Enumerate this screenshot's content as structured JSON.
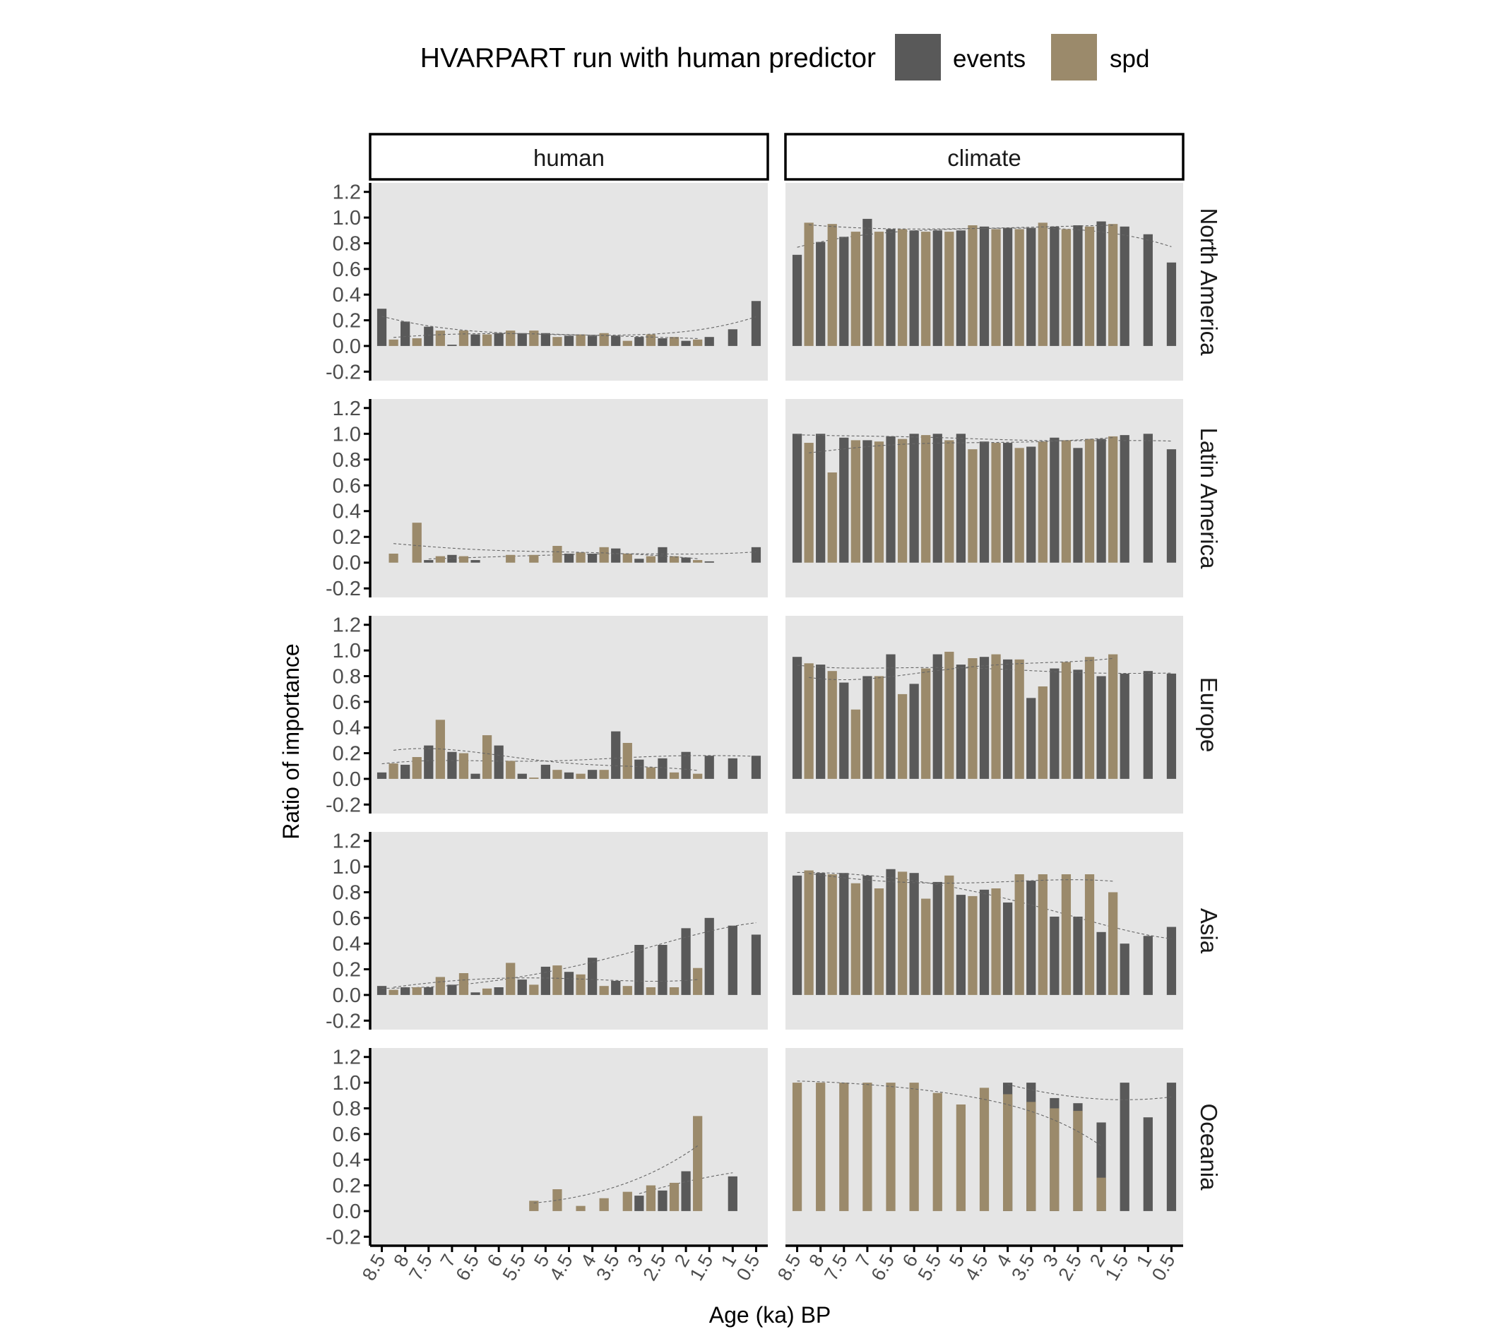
{
  "legend": {
    "title": "HVARPART run with human predictor",
    "items": [
      {
        "label": "events",
        "color": "#595959"
      },
      {
        "label": "spd",
        "color": "#9B8A6B"
      }
    ]
  },
  "axes": {
    "ylabel": "Ratio of importance",
    "xlabel": "Age (ka) BP"
  },
  "chart_data": {
    "type": "bar",
    "title": "",
    "xlabel": "Age (ka) BP",
    "ylabel": "Ratio of importance",
    "ylim": [
      -0.27,
      1.27
    ],
    "xlim": [
      8.75,
      0.25
    ],
    "x_reversed": true,
    "yticks": [
      -0.2,
      0.0,
      0.2,
      0.4,
      0.6,
      0.8,
      1.0,
      1.2
    ],
    "ytick_labels": [
      "-0.2",
      "0.0",
      "0.2",
      "0.4",
      "0.6",
      "0.8",
      "1.0",
      "1.2"
    ],
    "xticks": [
      8.5,
      8,
      7.5,
      7,
      6.5,
      6,
      5.5,
      5,
      4.5,
      4,
      3.5,
      3,
      2.5,
      2,
      1.5,
      1,
      0.5
    ],
    "xtick_labels": [
      "8.5",
      "8",
      "7.5",
      "7",
      "6.5",
      "6",
      "5.5",
      "5",
      "4.5",
      "4",
      "3.5",
      "3",
      "2.5",
      "2",
      "1.5",
      "1",
      "0.5"
    ],
    "grid": false,
    "legend_position": "top",
    "facet_columns": [
      "human",
      "climate"
    ],
    "facet_rows": [
      "North America",
      "Latin America",
      "Europe",
      "Asia",
      "Oceania"
    ],
    "series_names": [
      "events",
      "spd"
    ],
    "ages": [
      8.5,
      8.25,
      8,
      7.75,
      7.5,
      7.25,
      7,
      6.75,
      6.5,
      6.25,
      6,
      5.75,
      5.5,
      5.25,
      5,
      4.75,
      4.5,
      4.25,
      4,
      3.75,
      3.5,
      3.25,
      3,
      2.75,
      2.5,
      2.25,
      2,
      1.75,
      1.5,
      1.25,
      1,
      0.75,
      0.5
    ],
    "panels": [
      {
        "row": "North America",
        "col": "human",
        "events": [
          0.29,
          null,
          0.19,
          null,
          0.15,
          null,
          0.01,
          null,
          0.09,
          null,
          0.1,
          null,
          0.1,
          null,
          0.1,
          null,
          0.08,
          null,
          0.08,
          null,
          0.08,
          null,
          0.07,
          null,
          0.06,
          null,
          0.04,
          null,
          0.07,
          null,
          0.13,
          null,
          0.35
        ],
        "spd": [
          null,
          0.05,
          null,
          0.06,
          null,
          0.12,
          null,
          0.12,
          null,
          0.09,
          null,
          0.12,
          null,
          0.12,
          null,
          0.07,
          null,
          0.09,
          null,
          0.1,
          null,
          0.04,
          null,
          0.09,
          null,
          0.07,
          null,
          0.05,
          null,
          null,
          null,
          null,
          null
        ]
      },
      {
        "row": "North America",
        "col": "climate",
        "events": [
          0.71,
          null,
          0.81,
          null,
          0.85,
          null,
          0.99,
          null,
          0.91,
          null,
          0.9,
          null,
          0.9,
          null,
          0.9,
          null,
          0.93,
          null,
          0.92,
          null,
          0.92,
          null,
          0.93,
          null,
          0.94,
          null,
          0.97,
          null,
          0.93,
          null,
          0.87,
          null,
          0.65
        ],
        "spd": [
          null,
          0.96,
          null,
          0.95,
          null,
          0.89,
          null,
          0.89,
          null,
          0.91,
          null,
          0.89,
          null,
          0.89,
          null,
          0.94,
          null,
          0.91,
          null,
          0.91,
          null,
          0.96,
          null,
          0.91,
          null,
          0.93,
          null,
          0.95,
          null,
          null,
          null,
          null,
          null
        ]
      },
      {
        "row": "Latin America",
        "col": "human",
        "events": [
          null,
          null,
          null,
          null,
          0.02,
          null,
          0.06,
          null,
          0.02,
          null,
          null,
          null,
          null,
          null,
          null,
          null,
          0.07,
          null,
          0.07,
          null,
          0.11,
          null,
          0.03,
          null,
          0.12,
          null,
          0.04,
          null,
          0.01,
          null,
          null,
          null,
          0.12
        ],
        "spd": [
          null,
          0.07,
          null,
          0.31,
          null,
          0.05,
          null,
          0.05,
          null,
          null,
          null,
          0.06,
          null,
          0.06,
          null,
          0.13,
          null,
          0.08,
          null,
          0.12,
          null,
          0.07,
          null,
          0.05,
          null,
          0.05,
          null,
          0.02,
          null,
          null,
          null,
          null,
          null
        ]
      },
      {
        "row": "Latin America",
        "col": "climate",
        "events": [
          1.0,
          null,
          1.0,
          null,
          0.97,
          null,
          0.95,
          null,
          0.98,
          null,
          1.0,
          null,
          1.0,
          null,
          1.0,
          null,
          0.94,
          null,
          0.93,
          null,
          0.9,
          null,
          0.97,
          null,
          0.89,
          null,
          0.96,
          null,
          0.99,
          null,
          1.0,
          null,
          0.88
        ],
        "spd": [
          null,
          0.93,
          null,
          0.7,
          null,
          0.95,
          null,
          0.94,
          null,
          0.96,
          null,
          0.99,
          null,
          0.95,
          null,
          0.88,
          null,
          0.93,
          null,
          0.89,
          null,
          0.94,
          null,
          0.95,
          null,
          0.96,
          null,
          0.98,
          null,
          null,
          null,
          null,
          null
        ]
      },
      {
        "row": "Europe",
        "col": "human",
        "events": [
          0.05,
          null,
          0.11,
          null,
          0.26,
          null,
          0.21,
          null,
          0.04,
          null,
          0.26,
          null,
          0.04,
          null,
          0.11,
          null,
          0.05,
          null,
          0.07,
          null,
          0.37,
          null,
          0.15,
          null,
          0.16,
          null,
          0.21,
          null,
          0.18,
          null,
          0.16,
          null,
          0.18
        ],
        "spd": [
          null,
          0.12,
          null,
          0.17,
          null,
          0.46,
          null,
          0.2,
          null,
          0.34,
          null,
          0.14,
          null,
          0.01,
          null,
          0.07,
          null,
          0.04,
          null,
          0.07,
          null,
          0.28,
          null,
          0.09,
          null,
          0.05,
          null,
          0.04,
          null,
          null,
          null,
          null,
          null
        ]
      },
      {
        "row": "Europe",
        "col": "climate",
        "events": [
          0.95,
          null,
          0.89,
          null,
          0.75,
          null,
          0.8,
          null,
          0.97,
          null,
          0.74,
          null,
          0.97,
          null,
          0.89,
          null,
          0.95,
          null,
          0.93,
          null,
          0.63,
          null,
          0.86,
          null,
          0.85,
          null,
          0.8,
          null,
          0.82,
          null,
          0.84,
          null,
          0.82
        ],
        "spd": [
          null,
          0.9,
          null,
          0.84,
          null,
          0.54,
          null,
          0.8,
          null,
          0.66,
          null,
          0.86,
          null,
          0.99,
          null,
          0.94,
          null,
          0.97,
          null,
          0.93,
          null,
          0.72,
          null,
          0.91,
          null,
          0.95,
          null,
          0.97,
          null,
          null,
          null,
          null,
          null
        ]
      },
      {
        "row": "Asia",
        "col": "human",
        "events": [
          0.07,
          null,
          0.06,
          null,
          0.06,
          null,
          0.08,
          null,
          0.02,
          null,
          0.06,
          null,
          0.12,
          null,
          0.22,
          null,
          0.18,
          null,
          0.29,
          null,
          0.11,
          null,
          0.39,
          null,
          0.39,
          null,
          0.52,
          null,
          0.6,
          null,
          0.54,
          null,
          0.47
        ],
        "spd": [
          null,
          0.04,
          null,
          0.06,
          null,
          0.14,
          null,
          0.17,
          null,
          0.05,
          null,
          0.25,
          null,
          0.08,
          null,
          0.23,
          null,
          0.16,
          null,
          0.07,
          null,
          0.07,
          null,
          0.06,
          null,
          0.06,
          null,
          0.21,
          null,
          null,
          null,
          null,
          null
        ]
      },
      {
        "row": "Asia",
        "col": "climate",
        "events": [
          0.93,
          null,
          0.95,
          null,
          0.95,
          null,
          0.93,
          null,
          0.98,
          null,
          0.95,
          null,
          0.88,
          null,
          0.78,
          null,
          0.82,
          null,
          0.72,
          null,
          0.89,
          null,
          0.61,
          null,
          0.61,
          null,
          0.49,
          null,
          0.4,
          null,
          0.46,
          null,
          0.53
        ],
        "spd": [
          null,
          0.97,
          null,
          0.94,
          null,
          0.87,
          null,
          0.83,
          null,
          0.96,
          null,
          0.75,
          null,
          0.93,
          null,
          0.77,
          null,
          0.83,
          null,
          0.94,
          null,
          0.94,
          null,
          0.94,
          null,
          0.94,
          null,
          0.8,
          null,
          null,
          null,
          null,
          null
        ]
      },
      {
        "row": "Oceania",
        "col": "human",
        "events": [
          null,
          null,
          null,
          null,
          null,
          null,
          null,
          null,
          null,
          null,
          null,
          null,
          null,
          null,
          null,
          null,
          null,
          null,
          null,
          null,
          null,
          null,
          0.12,
          null,
          0.16,
          null,
          0.31,
          null,
          null,
          null,
          0.27,
          null,
          null
        ],
        "spd": [
          null,
          null,
          null,
          null,
          null,
          null,
          null,
          null,
          null,
          null,
          null,
          null,
          null,
          0.08,
          null,
          0.17,
          null,
          0.04,
          null,
          0.1,
          null,
          0.15,
          null,
          0.2,
          null,
          0.22,
          null,
          0.74,
          null,
          null,
          null,
          null,
          null
        ]
      },
      {
        "row": "Oceania",
        "col": "climate",
        "events": [
          null,
          null,
          null,
          null,
          null,
          null,
          null,
          null,
          null,
          null,
          null,
          null,
          null,
          null,
          null,
          null,
          null,
          null,
          1.0,
          null,
          1.0,
          null,
          0.88,
          null,
          0.84,
          null,
          0.69,
          null,
          1.0,
          null,
          0.73,
          null,
          1.0
        ],
        "spd": [
          1.0,
          null,
          1.0,
          null,
          1.0,
          null,
          1.0,
          null,
          1.0,
          null,
          1.0,
          null,
          0.92,
          null,
          0.83,
          null,
          0.96,
          null,
          0.91,
          null,
          0.85,
          null,
          0.8,
          null,
          0.78,
          null,
          0.26,
          null,
          null,
          null,
          null,
          null,
          null
        ]
      }
    ]
  }
}
